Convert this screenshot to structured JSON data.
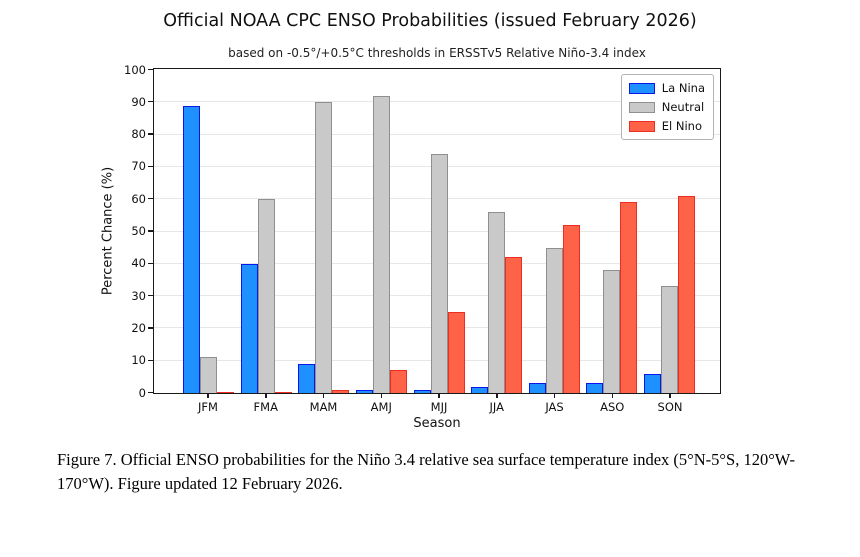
{
  "figure": {
    "caption": "Figure 7. Official ENSO probabilities for the Niño 3.4 relative sea surface temperature index (5°N-5°S, 120°W-170°W). Figure updated 12 February 2026."
  },
  "chart_data": {
    "type": "bar",
    "title": "Official NOAA CPC ENSO Probabilities (issued February 2026)",
    "subtitle": "based on -0.5°/+0.5°C thresholds in ERSSTv5 Relative Niño-3.4 index",
    "xlabel": "Season",
    "ylabel": "Percent Chance (%)",
    "ylim": [
      0,
      100
    ],
    "ytick_step": 10,
    "grid": true,
    "legend_position": "top-right",
    "categories": [
      "JFM",
      "FMA",
      "MAM",
      "AMJ",
      "MJJ",
      "JJA",
      "JAS",
      "ASO",
      "SON"
    ],
    "series": [
      {
        "name": "La Nina",
        "fill_color": "#1E90FF",
        "edge_color": "#0B16E8",
        "values": [
          89,
          40,
          9,
          1,
          1,
          2,
          3,
          3,
          6
        ]
      },
      {
        "name": "Neutral",
        "fill_color": "#C9C9C9",
        "edge_color": "#8F8F8F",
        "values": [
          11,
          60,
          90,
          92,
          74,
          56,
          45,
          38,
          33
        ]
      },
      {
        "name": "El Nino",
        "fill_color": "#FF6347",
        "edge_color": "#EE2D22",
        "values": [
          0,
          0,
          1,
          7,
          25,
          42,
          52,
          59,
          61
        ]
      }
    ]
  }
}
